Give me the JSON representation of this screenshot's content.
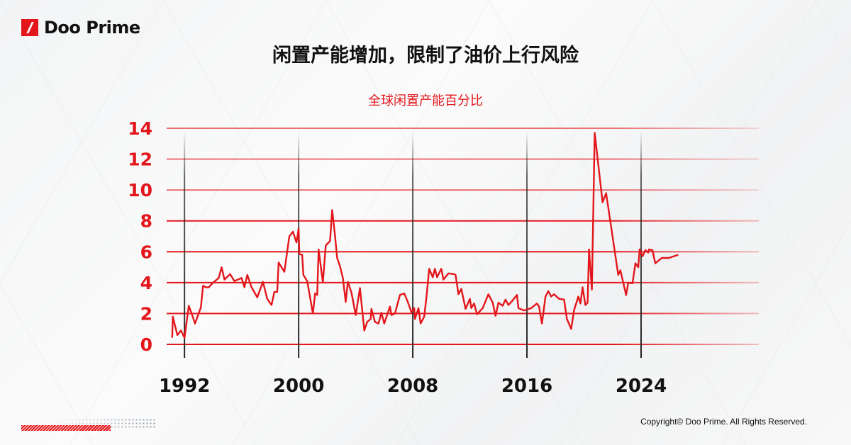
{
  "brand": {
    "name": "Doo Prime",
    "accent": "#e3161b"
  },
  "header": {
    "title": "闲置产能增加，限制了油价上行风险"
  },
  "footer": {
    "copyright": "Copyright© Doo Prime. All Rights Reserved."
  },
  "chart_data": {
    "type": "line",
    "title": "全球闲置产能百分比",
    "xlabel": "",
    "ylabel": "",
    "ylim": [
      0,
      14
    ],
    "xlim": [
      1990.75,
      2032.25
    ],
    "yticks": [
      0,
      2,
      4,
      6,
      8,
      10,
      12,
      14
    ],
    "xticks": [
      1992,
      2000,
      2008,
      2016,
      2024
    ],
    "grid": "horizontal red lines, vertical lines at x ticks",
    "line_color": "#e3161b",
    "series": [
      {
        "x": [
          1991.14,
          1991.18,
          1991.5,
          1991.75,
          1992.0,
          1992.3,
          1992.5,
          1992.74,
          1993.15,
          1993.3,
          1993.5,
          1993.7,
          1994.0,
          1994.4,
          1994.6,
          1994.8,
          1995.2,
          1995.5,
          1996.0,
          1996.2,
          1996.4,
          1996.7,
          1997.1,
          1997.5,
          1997.8,
          1998.1,
          1998.3,
          1998.5,
          1998.6,
          1999.0,
          1999.35,
          1999.6,
          1999.85,
          2000.0,
          2000.05,
          2000.25,
          2000.33,
          2000.6,
          2001.0,
          2001.15,
          2001.3,
          2001.4,
          2001.7,
          2001.9,
          2002.2,
          2002.35,
          2002.55,
          2002.7,
          2002.9,
          2003.1,
          2003.3,
          2003.45,
          2003.7,
          2004.0,
          2004.3,
          2004.6,
          2004.8,
          2005.05,
          2005.1,
          2005.35,
          2005.6,
          2005.8,
          2006.0,
          2006.4,
          2006.5,
          2006.75,
          2007.1,
          2007.4,
          2007.65,
          2007.9,
          2008.1,
          2008.15,
          2008.4,
          2008.55,
          2008.8,
          2008.95,
          2009.15,
          2009.4,
          2009.55,
          2009.7,
          2010.0,
          2010.15,
          2010.5,
          2010.9,
          2011.0,
          2011.2,
          2011.4,
          2011.7,
          2012.0,
          2012.1,
          2012.3,
          2012.5,
          2012.9,
          2013.3,
          2013.6,
          2013.8,
          2014.0,
          2014.3,
          2014.5,
          2014.7,
          2015.0,
          2015.3,
          2015.4,
          2015.8,
          2016.3,
          2016.7,
          2016.85,
          2017.05,
          2017.3,
          2017.5,
          2017.7,
          2017.9,
          2018.25,
          2018.6,
          2018.8,
          2019.1,
          2019.3,
          2019.6,
          2019.75,
          2019.9,
          2020.1,
          2020.25,
          2020.35,
          2020.55,
          2020.75,
          2021.3,
          2021.55,
          2022.4,
          2022.55,
          2022.95,
          2023.1,
          2023.4,
          2023.6,
          2023.8,
          2023.9,
          2024.1,
          2024.3,
          2024.5,
          2024.55,
          2024.8,
          2024.9,
          2025.0,
          2025.45,
          2025.95,
          2026.6
        ],
        "y": [
          0.43,
          1.8,
          0.6,
          0.9,
          0.43,
          2.5,
          2.0,
          1.35,
          2.4,
          3.8,
          3.7,
          3.7,
          4.0,
          4.3,
          5.0,
          4.2,
          4.55,
          4.1,
          4.3,
          3.7,
          4.5,
          3.7,
          3.05,
          4.05,
          2.95,
          2.55,
          3.4,
          3.4,
          5.3,
          4.7,
          7.0,
          7.3,
          6.6,
          7.5,
          5.85,
          5.8,
          4.5,
          4.1,
          2.0,
          3.3,
          3.2,
          6.15,
          4.0,
          6.4,
          6.7,
          8.7,
          7.05,
          5.6,
          5.05,
          4.3,
          2.75,
          4.05,
          3.35,
          1.9,
          3.65,
          0.9,
          1.45,
          1.65,
          2.3,
          1.45,
          1.35,
          2.05,
          1.35,
          2.45,
          1.9,
          2.0,
          3.2,
          3.3,
          2.75,
          2.1,
          2.35,
          1.65,
          2.35,
          1.35,
          1.8,
          3.0,
          4.9,
          4.35,
          4.9,
          4.35,
          4.9,
          4.2,
          4.6,
          4.55,
          4.5,
          3.25,
          3.6,
          2.3,
          2.95,
          2.35,
          2.65,
          1.95,
          2.35,
          3.25,
          2.7,
          1.85,
          2.7,
          2.5,
          2.9,
          2.55,
          2.85,
          3.2,
          2.35,
          2.2,
          2.35,
          2.65,
          2.45,
          1.35,
          3.1,
          3.45,
          3.1,
          3.25,
          2.95,
          2.9,
          1.65,
          1.0,
          2.2,
          3.1,
          2.65,
          3.7,
          2.55,
          2.7,
          6.15,
          3.55,
          13.7,
          9.2,
          9.8,
          4.5,
          4.8,
          3.2,
          4.0,
          3.95,
          5.25,
          5.0,
          6.15,
          5.7,
          6.1,
          5.95,
          6.15,
          6.1,
          5.65,
          5.25,
          5.6,
          5.6,
          5.8
        ]
      }
    ]
  }
}
